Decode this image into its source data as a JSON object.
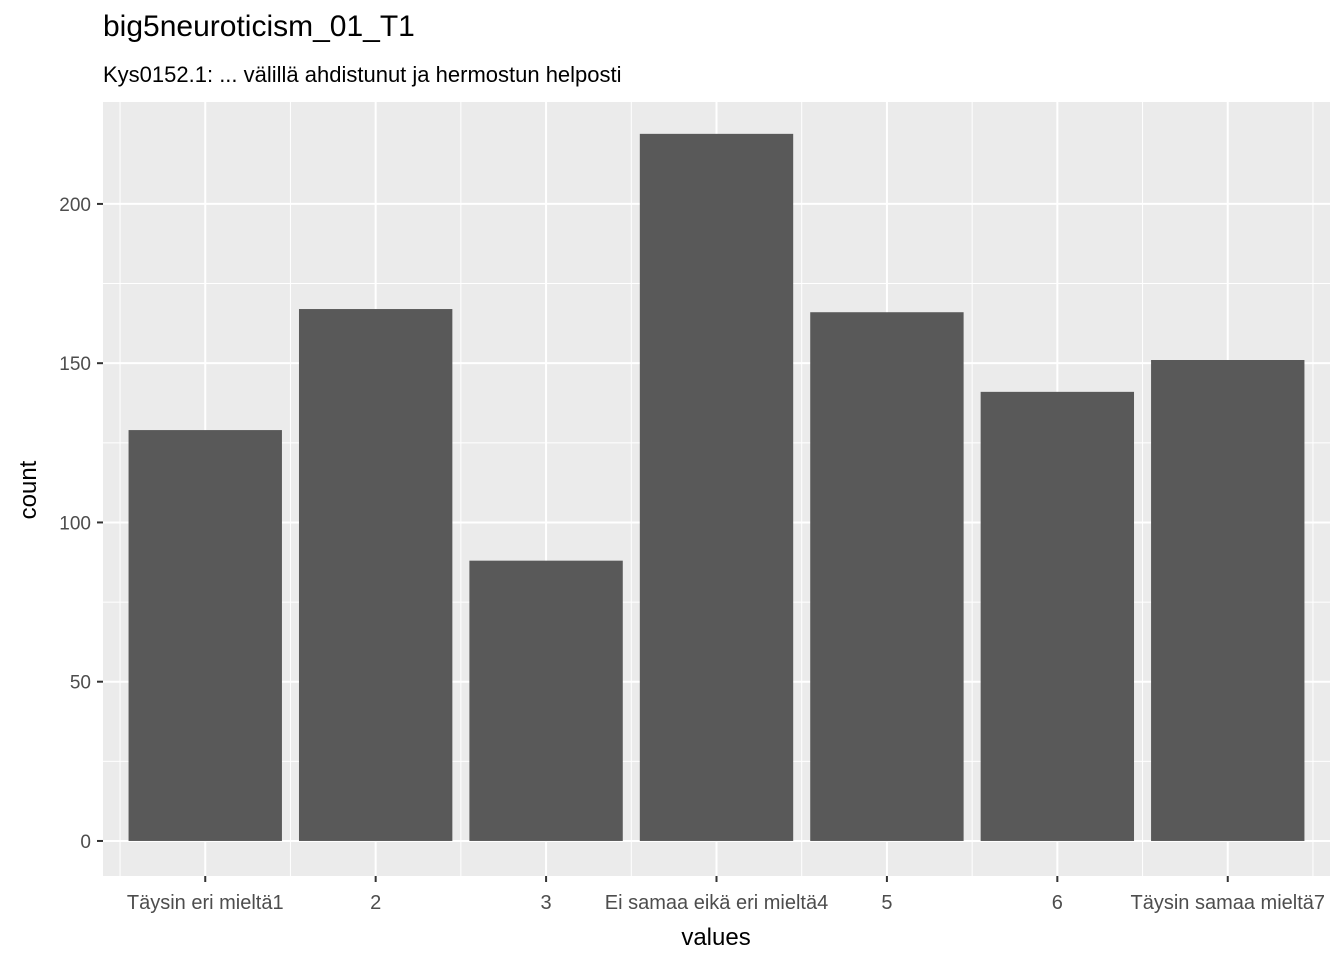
{
  "chart_data": {
    "type": "bar",
    "title": "big5neuroticism_01_T1",
    "subtitle": "Kys0152.1: ... välillä ahdistunut ja hermostun helposti",
    "xlabel": "values",
    "ylabel": "count",
    "categories": [
      "Täysin eri mieltä1",
      "2",
      "3",
      "Ei samaa eikä eri mieltä4",
      "5",
      "6",
      "Täysin samaa mieltä7"
    ],
    "values": [
      129,
      167,
      88,
      222,
      166,
      141,
      151
    ],
    "ylim": [
      -11,
      232
    ],
    "yticks": [
      0,
      50,
      100,
      150,
      200
    ],
    "grid": true,
    "colors": {
      "panel": "#ebebeb",
      "grid": "#ffffff",
      "bar": "#595959",
      "tick_text": "#4d4d4d"
    }
  }
}
